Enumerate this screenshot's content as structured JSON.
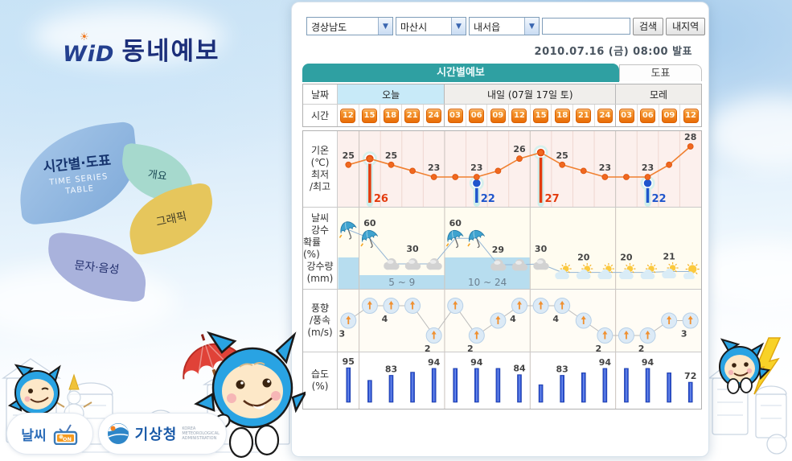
{
  "colors": {
    "accent_teal": "#2FA0A2",
    "badge_orange": "#EE7A12",
    "temp_line": "#F07B2F",
    "marker_high": "#E83B10",
    "marker_low": "#2256CE",
    "precip_band": "#B7DDEF",
    "humidity_bar": "#2A4FD0",
    "wind_arrow": "#F09030",
    "today_header": "#C8EAF8",
    "logo_navy": "#1C2F7A"
  },
  "logo": {
    "wid": "WiD",
    "title": "동네예보"
  },
  "menu": {
    "primary": {
      "label": "시간별·도표",
      "sublabel1": "TIME SERIES",
      "sublabel2": "TABLE"
    },
    "items": [
      {
        "label": "개요"
      },
      {
        "label": "그래픽"
      },
      {
        "label": "문자·음성"
      }
    ]
  },
  "controls": {
    "province": "경상남도",
    "city": "마산시",
    "town": "내서읍",
    "keyword": "",
    "search_label": "검색",
    "my_area_label": "내지역"
  },
  "published": "2010.07.16 (금) 08:00 발표",
  "tabs": [
    {
      "label": "시간별예보",
      "active": true
    },
    {
      "label": "도표",
      "active": false
    }
  ],
  "table": {
    "date_label": "날짜",
    "time_label": "시간",
    "days": [
      {
        "label": "오늘",
        "span": 5
      },
      {
        "label": "내일 (07월 17일 토)",
        "span": 8
      },
      {
        "label": "모레",
        "span": 4
      }
    ],
    "hours": [
      "12",
      "15",
      "18",
      "21",
      "24",
      "03",
      "06",
      "09",
      "12",
      "15",
      "18",
      "21",
      "24",
      "03",
      "06",
      "09",
      "12"
    ]
  },
  "chart_data": [
    {
      "type": "line",
      "name": "temperature",
      "row_label_lines": [
        "기온",
        "(℃)",
        "최저",
        "/최고"
      ],
      "categories": [
        "12",
        "15",
        "18",
        "21",
        "24",
        "03",
        "06",
        "09",
        "12",
        "15",
        "18",
        "21",
        "24",
        "03",
        "06",
        "09",
        "12"
      ],
      "values": [
        25,
        26,
        25,
        24,
        23,
        23,
        23,
        24,
        26,
        27,
        25,
        24,
        23,
        23,
        23,
        25,
        28
      ],
      "labeled_indices": [
        0,
        2,
        4,
        6,
        8,
        10,
        12,
        14,
        16
      ],
      "extremes": [
        {
          "index": 1,
          "kind": "high",
          "value": 26
        },
        {
          "index": 6,
          "kind": "low",
          "value": 22
        },
        {
          "index": 9,
          "kind": "high",
          "value": 27
        },
        {
          "index": 14,
          "kind": "low",
          "value": 22
        }
      ],
      "ylim": [
        21,
        29
      ]
    },
    {
      "type": "line",
      "name": "precipitation",
      "row_label_lines": [
        "날씨",
        "강수",
        "확률(%)",
        "강수량",
        "(mm)"
      ],
      "probability_pct": [
        70,
        60,
        30,
        30,
        30,
        60,
        60,
        29,
        29,
        30,
        20,
        20,
        20,
        20,
        20,
        21,
        21
      ],
      "labeled_indices": [
        1,
        3,
        5,
        7,
        9,
        11,
        13,
        15
      ],
      "icons": [
        "rain",
        "rain",
        "cloudy",
        "cloudy",
        "cloudy",
        "rain",
        "rain",
        "cloudy",
        "cloudy",
        "cloudy",
        "cloud-sun",
        "cloud-sun",
        "cloud-sun",
        "cloud-sun",
        "cloud-sun",
        "cloud-sun",
        "sun-cloud"
      ],
      "amount_bands_mm": [
        {
          "from": 0,
          "to": 0,
          "text": "",
          "level": "high"
        },
        {
          "from": 1,
          "to": 4,
          "text": "5 ~ 9",
          "level": "low"
        },
        {
          "from": 5,
          "to": 8,
          "text": "10 ~ 24",
          "level": "high"
        }
      ]
    },
    {
      "type": "line",
      "name": "wind",
      "row_label_lines": [
        "풍향",
        "/풍속",
        "(m/s)"
      ],
      "speed_ms": [
        3,
        4,
        4,
        4,
        2,
        4,
        2,
        3,
        4,
        4,
        4,
        3,
        2,
        2,
        2,
        3,
        3
      ],
      "direction": "up",
      "labeled_indices": [
        0,
        2,
        4,
        6,
        8,
        10,
        12,
        14,
        16
      ]
    },
    {
      "type": "bar",
      "name": "humidity",
      "row_label_lines": [
        "습도",
        "(%)"
      ],
      "values_pct": [
        95,
        75,
        83,
        88,
        94,
        94,
        94,
        94,
        84,
        68,
        83,
        87,
        94,
        94,
        94,
        87,
        72
      ],
      "labeled_indices": [
        0,
        2,
        4,
        6,
        8,
        10,
        12,
        14,
        16
      ]
    }
  ],
  "footer_logos": {
    "weather_on": {
      "text": "날씨",
      "badge": "ON"
    },
    "kma": {
      "name": "기상청",
      "subtext": "KOREA METEOROLOGICAL ADMINISTRATION"
    }
  }
}
